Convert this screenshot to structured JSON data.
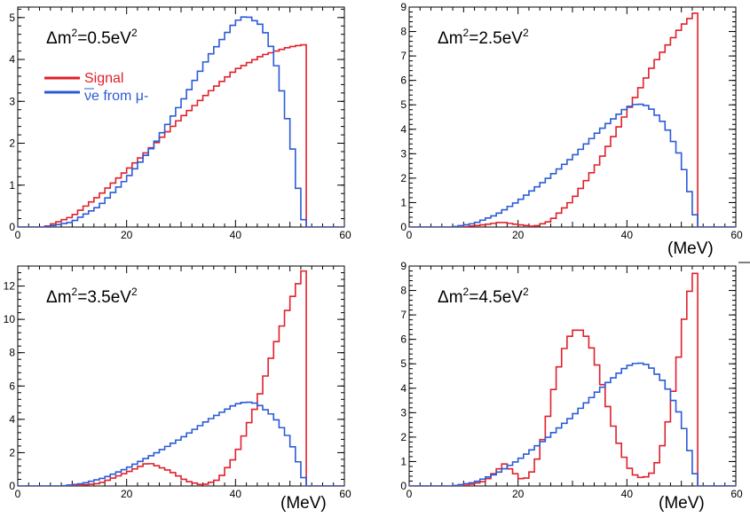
{
  "chart_data": [
    {
      "type": "line",
      "title": "Δm²=0.5eV²",
      "title_main": "Δm",
      "title_sup": "2",
      "title_value": "=0.5eV",
      "title_sup2": "2",
      "xlabel": "(MeV)",
      "show_xlabel": false,
      "xlim": [
        0,
        60
      ],
      "ylim": [
        0,
        5.25
      ],
      "xticks": [
        0,
        20,
        40,
        60
      ],
      "yticks": [
        0,
        1,
        2,
        3,
        4,
        5
      ],
      "legend": {
        "position": "top-left",
        "entries": [
          {
            "label": "Signal",
            "color": "#e0202a"
          },
          {
            "label": "νe from μ-",
            "color": "#2a5bd7"
          }
        ]
      },
      "series": [
        {
          "name": "Signal",
          "color": "#e0202a",
          "x": [
            0,
            5,
            10,
            15,
            20,
            25,
            30,
            35,
            40,
            45,
            50,
            52.5,
            53,
            53.5,
            60
          ],
          "values": [
            0,
            0,
            0.25,
            0.75,
            1.35,
            1.95,
            2.6,
            3.2,
            3.75,
            4.1,
            4.3,
            4.35,
            0,
            0,
            0
          ]
        },
        {
          "name": "νe from μ-",
          "color": "#2a5bd7",
          "x": [
            0,
            5,
            10,
            15,
            20,
            25,
            30,
            35,
            40,
            42,
            45,
            47,
            49,
            51,
            52,
            53,
            60
          ],
          "values": [
            0,
            0,
            0.12,
            0.5,
            1.15,
            1.95,
            2.95,
            4.05,
            4.9,
            5.05,
            4.8,
            4.15,
            2.95,
            1.5,
            0.35,
            0,
            0
          ]
        }
      ]
    },
    {
      "type": "line",
      "title": "Δm²=2.5eV²",
      "title_main": "Δm",
      "title_sup": "2",
      "title_value": "=2.5eV",
      "title_sup2": "2",
      "xlabel": "(MeV)",
      "show_xlabel": true,
      "xlim": [
        0,
        60
      ],
      "ylim": [
        0,
        9
      ],
      "xticks": [
        0,
        20,
        40,
        60
      ],
      "yticks": [
        0,
        1,
        2,
        3,
        4,
        5,
        6,
        7,
        8,
        9
      ],
      "series": [
        {
          "name": "Signal",
          "color": "#e0202a",
          "x": [
            0,
            10,
            14,
            17,
            20,
            23,
            26,
            30,
            35,
            40,
            45,
            50,
            52.5,
            53,
            60
          ],
          "values": [
            0,
            0,
            0.1,
            0.2,
            0.1,
            0.02,
            0.25,
            1.1,
            2.7,
            4.7,
            6.7,
            8.2,
            8.75,
            0,
            0
          ]
        },
        {
          "name": "νe from μ-",
          "color": "#2a5bd7",
          "x": [
            0,
            8,
            12,
            16,
            20,
            25,
            30,
            35,
            40,
            42,
            44,
            47,
            50,
            52,
            53,
            60
          ],
          "values": [
            0,
            0,
            0.15,
            0.5,
            1.05,
            1.9,
            2.85,
            3.95,
            4.9,
            5.05,
            4.95,
            4.2,
            2.8,
            1.0,
            0,
            0
          ]
        }
      ]
    },
    {
      "type": "line",
      "title": "Δm²=3.5eV²",
      "title_main": "Δm",
      "title_sup": "2",
      "title_value": "=3.5eV",
      "title_sup2": "2",
      "xlabel": "(MeV)",
      "show_xlabel": true,
      "xlim": [
        0,
        60
      ],
      "ylim": [
        0,
        13.2
      ],
      "xticks": [
        0,
        20,
        40,
        60
      ],
      "yticks": [
        0,
        2,
        4,
        6,
        8,
        10,
        12
      ],
      "series": [
        {
          "name": "Signal",
          "color": "#e0202a",
          "x": [
            0,
            10,
            15,
            20,
            24,
            28,
            31,
            34,
            37,
            40,
            44,
            47,
            50,
            52.5,
            53,
            60
          ],
          "values": [
            0,
            0,
            0.15,
            0.8,
            1.4,
            0.9,
            0.3,
            0.05,
            0.4,
            1.8,
            5.0,
            8.2,
            11.0,
            12.9,
            0,
            0
          ]
        },
        {
          "name": "νe from μ-",
          "color": "#2a5bd7",
          "x": [
            0,
            8,
            12,
            16,
            20,
            25,
            30,
            35,
            40,
            42,
            44,
            47,
            50,
            52,
            53,
            60
          ],
          "values": [
            0,
            0,
            0.15,
            0.5,
            1.05,
            1.9,
            2.85,
            3.95,
            4.9,
            5.05,
            4.95,
            4.2,
            2.8,
            1.0,
            0,
            0
          ]
        }
      ]
    },
    {
      "type": "line",
      "title": "Δm²=4.5eV²",
      "title_main": "Δm",
      "title_sup": "2",
      "title_value": "=4.5eV",
      "title_sup2": "2",
      "xlabel": "(MeV)",
      "show_xlabel": true,
      "xlim": [
        0,
        60
      ],
      "ylim": [
        0,
        9
      ],
      "xticks": [
        0,
        20,
        40,
        60
      ],
      "yticks": [
        0,
        1,
        2,
        3,
        4,
        5,
        6,
        7,
        8,
        9
      ],
      "series": [
        {
          "name": "Signal",
          "color": "#e0202a",
          "x": [
            0,
            10,
            14,
            16,
            17.5,
            19,
            21,
            23,
            25,
            27,
            29,
            31,
            33,
            35,
            37,
            39,
            41,
            43,
            45,
            47,
            49,
            51,
            52.5,
            53,
            60
          ],
          "values": [
            0,
            0,
            0.2,
            0.6,
            0.9,
            0.6,
            0.2,
            0.7,
            2.3,
            4.5,
            6.0,
            6.5,
            6.0,
            4.6,
            2.8,
            1.4,
            0.5,
            0.3,
            0.6,
            2.0,
            4.5,
            7.6,
            8.7,
            0,
            0
          ]
        },
        {
          "name": "νe from μ-",
          "color": "#2a5bd7",
          "x": [
            0,
            8,
            12,
            16,
            20,
            25,
            30,
            35,
            40,
            42,
            44,
            47,
            50,
            52,
            53,
            60
          ],
          "values": [
            0,
            0,
            0.15,
            0.5,
            1.05,
            1.9,
            2.85,
            3.95,
            4.9,
            5.05,
            4.95,
            4.2,
            2.8,
            1.0,
            0,
            0
          ]
        }
      ]
    }
  ]
}
